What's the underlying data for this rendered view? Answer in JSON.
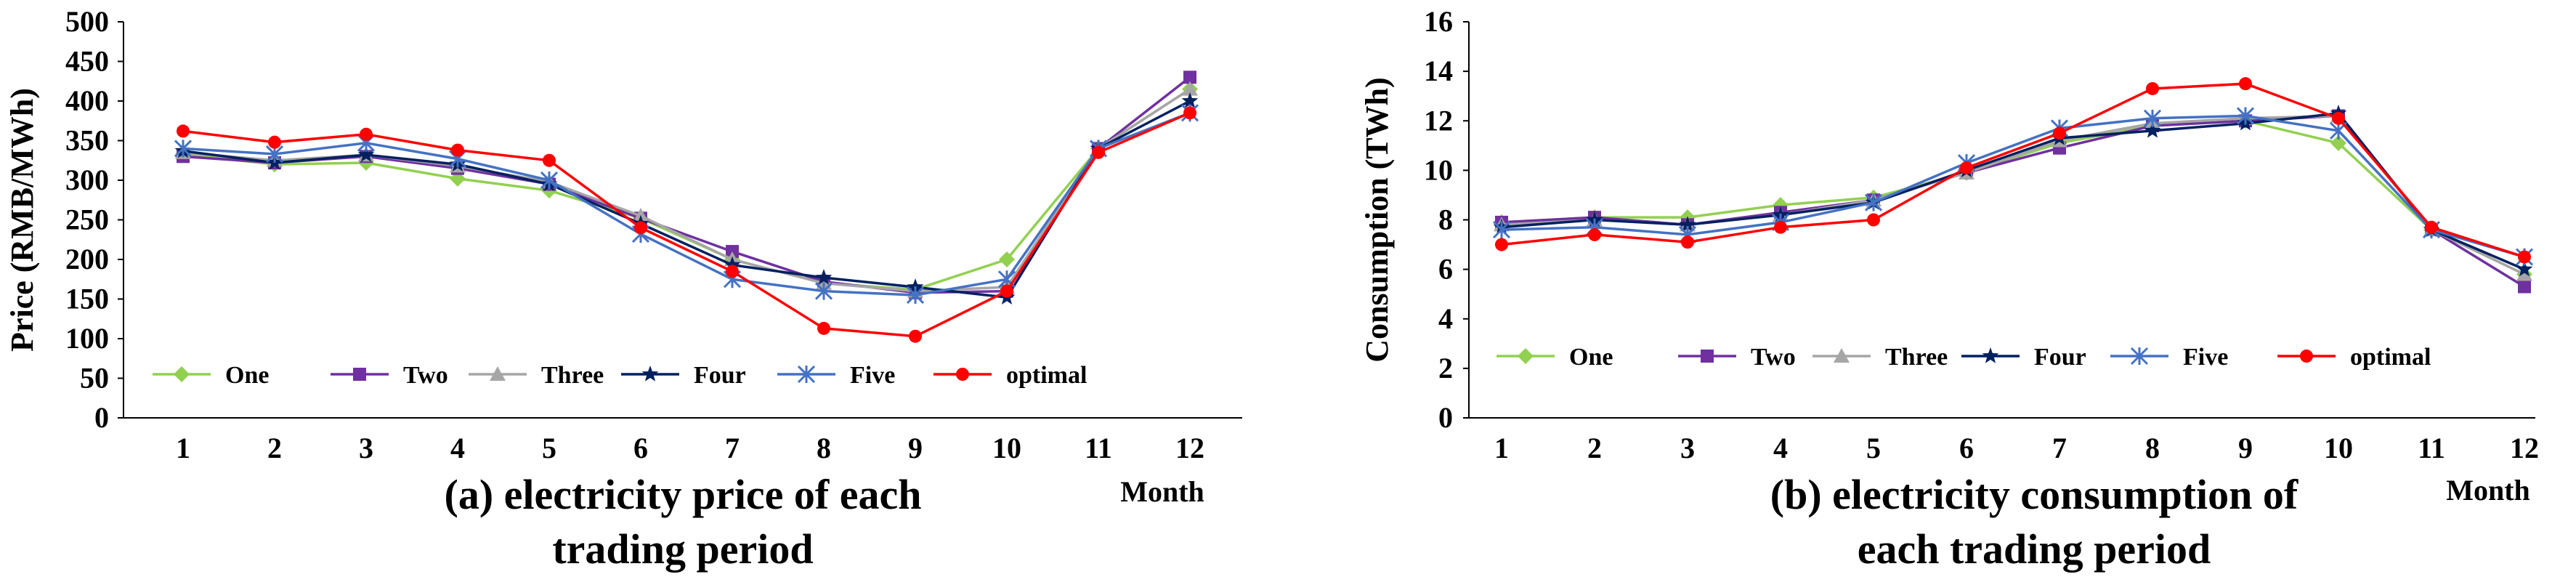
{
  "colors": {
    "One": "#92d050",
    "Two": "#7030a0",
    "Three": "#a6a6a6",
    "Four": "#002060",
    "Five": "#4472c4",
    "optimal": "#ff0000",
    "axis": "#000000"
  },
  "chart_data": [
    {
      "type": "line",
      "ylabel": "Price (RMB/MWh)",
      "xlabel": "Month",
      "caption_line1": "(a) electricity price of each",
      "caption_line2": "trading period",
      "categories": [
        "1",
        "2",
        "3",
        "4",
        "5",
        "6",
        "7",
        "8",
        "9",
        "10",
        "11",
        "12"
      ],
      "ylim": [
        0,
        500
      ],
      "yticks": [
        "0",
        "50",
        "100",
        "150",
        "200",
        "250",
        "300",
        "350",
        "400",
        "450",
        "500"
      ],
      "series": [
        {
          "name": "One",
          "marker": "diamond",
          "values": [
            333,
            320,
            322,
            302,
            287,
            252,
            200,
            170,
            162,
            200,
            340,
            415
          ]
        },
        {
          "name": "Two",
          "marker": "square",
          "values": [
            330,
            322,
            330,
            315,
            295,
            252,
            210,
            172,
            158,
            160,
            340,
            430
          ]
        },
        {
          "name": "Three",
          "marker": "triangle",
          "values": [
            335,
            325,
            332,
            318,
            298,
            255,
            200,
            170,
            160,
            165,
            340,
            415
          ]
        },
        {
          "name": "Four",
          "marker": "star",
          "values": [
            337,
            322,
            332,
            320,
            295,
            245,
            193,
            177,
            165,
            152,
            340,
            400
          ]
        },
        {
          "name": "Five",
          "marker": "x",
          "values": [
            340,
            333,
            347,
            327,
            300,
            232,
            175,
            160,
            155,
            175,
            340,
            385
          ]
        },
        {
          "name": "optimal",
          "marker": "circle",
          "values": [
            362,
            348,
            358,
            338,
            325,
            240,
            185,
            113,
            103,
            160,
            335,
            385
          ]
        }
      ]
    },
    {
      "type": "line",
      "ylabel": "Consumption (TWh)",
      "xlabel": "Month",
      "caption_line1": "(b) electricity consumption of",
      "caption_line2": "each trading period",
      "categories": [
        "1",
        "2",
        "3",
        "4",
        "5",
        "6",
        "7",
        "8",
        "9",
        "10",
        "11",
        "12"
      ],
      "ylim": [
        0,
        16
      ],
      "yticks": [
        "0",
        "2",
        "4",
        "6",
        "8",
        "10",
        "12",
        "14",
        "16"
      ],
      "series": [
        {
          "name": "One",
          "marker": "diamond",
          "values": [
            7.9,
            8.1,
            8.1,
            8.6,
            8.9,
            9.9,
            11.1,
            11.8,
            12.0,
            11.1,
            7.6,
            5.8
          ]
        },
        {
          "name": "Two",
          "marker": "square",
          "values": [
            7.9,
            8.1,
            7.8,
            8.3,
            8.8,
            9.9,
            10.9,
            11.8,
            12.0,
            12.2,
            7.6,
            5.3
          ]
        },
        {
          "name": "Three",
          "marker": "triangle",
          "values": [
            7.8,
            8.0,
            7.8,
            8.2,
            8.8,
            9.9,
            11.2,
            11.9,
            12.1,
            12.2,
            7.6,
            5.8
          ]
        },
        {
          "name": "Four",
          "marker": "star",
          "values": [
            7.7,
            8.0,
            7.8,
            8.2,
            8.7,
            10.0,
            11.3,
            11.6,
            11.9,
            12.3,
            7.6,
            6.0
          ]
        },
        {
          "name": "Five",
          "marker": "x",
          "values": [
            7.6,
            7.7,
            7.4,
            7.9,
            8.7,
            10.3,
            11.7,
            12.1,
            12.2,
            11.6,
            7.6,
            6.5
          ]
        },
        {
          "name": "optimal",
          "marker": "circle",
          "values": [
            7.0,
            7.4,
            7.1,
            7.7,
            8.0,
            10.1,
            11.5,
            13.3,
            13.5,
            12.1,
            7.7,
            6.5
          ]
        }
      ]
    }
  ]
}
